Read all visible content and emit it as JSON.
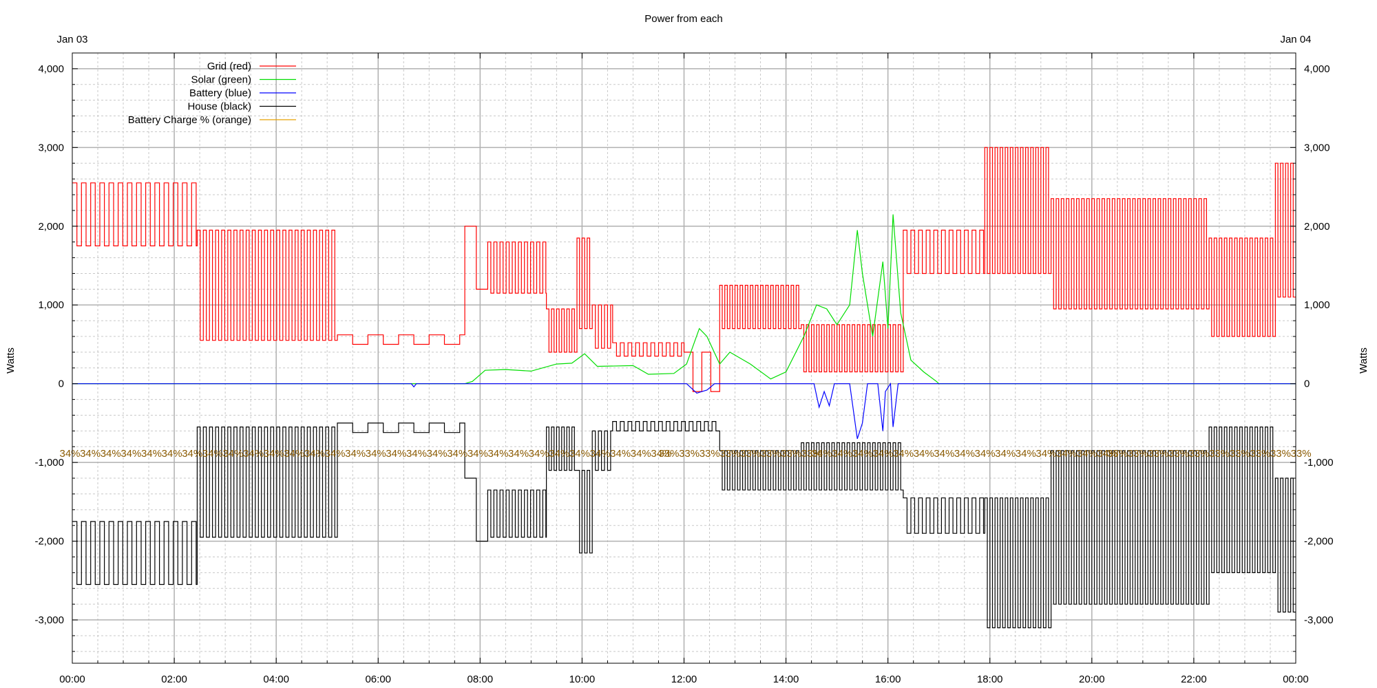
{
  "chart_data": {
    "type": "line",
    "title": "Power from each",
    "date_left": "Jan 03",
    "date_right": "Jan 04",
    "ylabel_left": "Watts",
    "ylabel_right": "Watts",
    "ylim": [
      -3550,
      4200
    ],
    "xlim_hours": [
      0,
      24
    ],
    "y_ticks": [
      4000,
      3000,
      2000,
      1000,
      0,
      -1000,
      -2000,
      -3000
    ],
    "y_tick_labels": [
      "4,000",
      "3,000",
      "2,000",
      "1,000",
      "0",
      "-1,000",
      "-2,000",
      "-3,000"
    ],
    "x_tick_hours": [
      0,
      2,
      4,
      6,
      8,
      10,
      12,
      14,
      16,
      18,
      20,
      22,
      24
    ],
    "x_tick_labels": [
      "00:00",
      "02:00",
      "04:00",
      "06:00",
      "08:00",
      "10:00",
      "12:00",
      "14:00",
      "16:00",
      "18:00",
      "20:00",
      "22:00",
      "00:00"
    ],
    "grid": true,
    "legend_position": "top-left",
    "series": [
      {
        "name": "Grid (red)",
        "color": "#ff0000",
        "segments": [
          {
            "from": 0.0,
            "to": 2.45,
            "high": 2550,
            "low": 1750,
            "period": 0.18
          },
          {
            "from": 2.45,
            "to": 5.2,
            "high": 1950,
            "low": 550,
            "period": 0.12
          },
          {
            "from": 5.2,
            "to": 7.7,
            "high": 620,
            "low": 500,
            "period": 0.6
          },
          {
            "from": 7.7,
            "to": 8.15,
            "high": 2000,
            "low": 1200,
            "period": 0.45
          },
          {
            "from": 8.15,
            "to": 9.3,
            "high": 1800,
            "low": 1150,
            "period": 0.12
          },
          {
            "from": 9.3,
            "to": 9.9,
            "high": 950,
            "low": 400,
            "period": 0.1
          },
          {
            "from": 9.9,
            "to": 10.2,
            "high": 1850,
            "low": 700,
            "period": 0.1
          },
          {
            "from": 10.2,
            "to": 10.6,
            "high": 1000,
            "low": 450,
            "period": 0.12
          },
          {
            "from": 10.6,
            "to": 12.0,
            "high": 520,
            "low": 350,
            "period": 0.15
          },
          {
            "from": 12.0,
            "to": 12.7,
            "high": 400,
            "low": -100,
            "period": 0.35
          },
          {
            "from": 12.7,
            "to": 14.3,
            "high": 1250,
            "low": 700,
            "period": 0.1
          },
          {
            "from": 14.3,
            "to": 16.3,
            "high": 750,
            "low": 150,
            "period": 0.1
          },
          {
            "from": 16.3,
            "to": 17.9,
            "high": 1950,
            "low": 1400,
            "period": 0.15
          },
          {
            "from": 17.9,
            "to": 19.2,
            "high": 3000,
            "low": 1400,
            "period": 0.1
          },
          {
            "from": 19.2,
            "to": 22.3,
            "high": 2350,
            "low": 950,
            "period": 0.1
          },
          {
            "from": 22.3,
            "to": 23.6,
            "high": 1850,
            "low": 600,
            "period": 0.1
          },
          {
            "from": 23.6,
            "to": 24.0,
            "high": 2800,
            "low": 1100,
            "period": 0.1
          }
        ]
      },
      {
        "name": "Solar (green)",
        "color": "#00dd00",
        "points": [
          [
            0.0,
            0
          ],
          [
            7.7,
            0
          ],
          [
            7.85,
            30
          ],
          [
            8.1,
            170
          ],
          [
            8.5,
            180
          ],
          [
            9.0,
            160
          ],
          [
            9.5,
            250
          ],
          [
            9.8,
            260
          ],
          [
            10.05,
            380
          ],
          [
            10.3,
            220
          ],
          [
            11.0,
            230
          ],
          [
            11.3,
            120
          ],
          [
            11.8,
            130
          ],
          [
            12.05,
            250
          ],
          [
            12.3,
            700
          ],
          [
            12.45,
            600
          ],
          [
            12.7,
            250
          ],
          [
            12.9,
            400
          ],
          [
            13.3,
            250
          ],
          [
            13.7,
            60
          ],
          [
            14.0,
            150
          ],
          [
            14.35,
            600
          ],
          [
            14.6,
            1000
          ],
          [
            14.8,
            950
          ],
          [
            15.0,
            750
          ],
          [
            15.25,
            1000
          ],
          [
            15.4,
            1950
          ],
          [
            15.5,
            1400
          ],
          [
            15.7,
            600
          ],
          [
            15.9,
            1550
          ],
          [
            16.0,
            700
          ],
          [
            16.1,
            2150
          ],
          [
            16.25,
            900
          ],
          [
            16.45,
            300
          ],
          [
            16.7,
            150
          ],
          [
            16.95,
            30
          ],
          [
            17.0,
            0
          ],
          [
            24.0,
            0
          ]
        ]
      },
      {
        "name": "Battery (blue)",
        "color": "#0000ff",
        "points": [
          [
            0.0,
            0
          ],
          [
            6.65,
            0
          ],
          [
            6.7,
            -40
          ],
          [
            6.75,
            0
          ],
          [
            12.05,
            0
          ],
          [
            12.15,
            -60
          ],
          [
            12.25,
            -120
          ],
          [
            12.45,
            -80
          ],
          [
            12.6,
            0
          ],
          [
            14.55,
            0
          ],
          [
            14.65,
            -300
          ],
          [
            14.75,
            -100
          ],
          [
            14.85,
            -280
          ],
          [
            14.95,
            0
          ],
          [
            15.25,
            0
          ],
          [
            15.4,
            -700
          ],
          [
            15.5,
            -500
          ],
          [
            15.6,
            0
          ],
          [
            15.8,
            0
          ],
          [
            15.9,
            -600
          ],
          [
            15.95,
            -100
          ],
          [
            16.05,
            0
          ],
          [
            16.1,
            -550
          ],
          [
            16.2,
            0
          ],
          [
            24.0,
            0
          ]
        ]
      },
      {
        "name": "House (black)",
        "color": "#000000",
        "segments": [
          {
            "from": 0.0,
            "to": 2.45,
            "high": -1750,
            "low": -2550,
            "period": 0.18
          },
          {
            "from": 2.45,
            "to": 5.2,
            "high": -550,
            "low": -1950,
            "period": 0.12
          },
          {
            "from": 5.2,
            "to": 7.7,
            "high": -500,
            "low": -620,
            "period": 0.6
          },
          {
            "from": 7.7,
            "to": 8.15,
            "high": -1200,
            "low": -2000,
            "period": 0.45
          },
          {
            "from": 8.15,
            "to": 9.3,
            "high": -1350,
            "low": -1950,
            "period": 0.12
          },
          {
            "from": 9.3,
            "to": 9.9,
            "high": -550,
            "low": -1100,
            "period": 0.1
          },
          {
            "from": 9.9,
            "to": 10.2,
            "high": -1100,
            "low": -2150,
            "period": 0.1
          },
          {
            "from": 10.2,
            "to": 10.6,
            "high": -600,
            "low": -1100,
            "period": 0.12
          },
          {
            "from": 10.6,
            "to": 12.7,
            "high": -480,
            "low": -600,
            "period": 0.15
          },
          {
            "from": 12.7,
            "to": 14.3,
            "high": -850,
            "low": -1350,
            "period": 0.1
          },
          {
            "from": 14.3,
            "to": 16.3,
            "high": -750,
            "low": -1350,
            "period": 0.1
          },
          {
            "from": 16.3,
            "to": 17.9,
            "high": -1450,
            "low": -1900,
            "period": 0.15
          },
          {
            "from": 17.9,
            "to": 19.2,
            "high": -1450,
            "low": -3100,
            "period": 0.1
          },
          {
            "from": 19.2,
            "to": 22.3,
            "high": -850,
            "low": -2800,
            "period": 0.1
          },
          {
            "from": 22.3,
            "to": 23.6,
            "high": -550,
            "low": -2400,
            "period": 0.1
          },
          {
            "from": 23.6,
            "to": 24.0,
            "high": -1200,
            "low": -2900,
            "period": 0.1
          }
        ]
      },
      {
        "name": "Battery Charge % (orange)",
        "color": "#e8a000",
        "label_color": "#8a5a00",
        "level_y": -930,
        "label_start_hour": -0.25,
        "label_step_hours": 0.4,
        "labels": [
          {
            "from": -0.25,
            "to": 11.5,
            "text": "34%"
          },
          {
            "from": 11.5,
            "to": 14.5,
            "text": "33%"
          },
          {
            "from": 14.5,
            "to": 20.3,
            "text": "34%"
          },
          {
            "from": 20.3,
            "to": 24.3,
            "text": "33%"
          }
        ]
      }
    ]
  }
}
